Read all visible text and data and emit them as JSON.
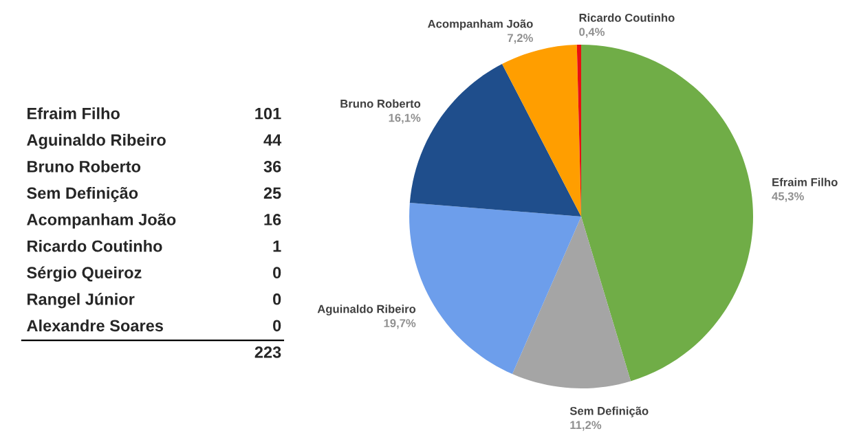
{
  "chart_data": [
    {
      "type": "other",
      "categories": [
        "Efraim Filho",
        "Aguinaldo Ribeiro",
        "Bruno Roberto",
        "Sem Definição",
        "Acompanham João",
        "Ricardo Coutinho",
        "Sérgio Queiroz",
        "Rangel Júnior",
        "Alexandre Soares"
      ],
      "values": [
        101,
        44,
        36,
        25,
        16,
        1,
        0,
        0,
        0
      ],
      "data_labels": true,
      "totals": [
        "223"
      ]
    },
    {
      "type": "pie",
      "categories": [
        "Efraim Filho",
        "Sem Definição",
        "Aguinaldo Ribeiro",
        "Bruno Roberto",
        "Acompanham João",
        "Ricardo Coutinho"
      ],
      "values": [
        45.3,
        11.2,
        19.7,
        16.1,
        7.2,
        0.4
      ],
      "colors": [
        "#70ad47",
        "#a5a5a5",
        "#6d9eeb",
        "#1f4e8c",
        "#ff9e00",
        "#e81010"
      ],
      "value_labels": [
        "45,3%",
        "11,2%",
        "19,7%",
        "16,1%",
        "7,2%",
        "0,4%"
      ]
    }
  ]
}
